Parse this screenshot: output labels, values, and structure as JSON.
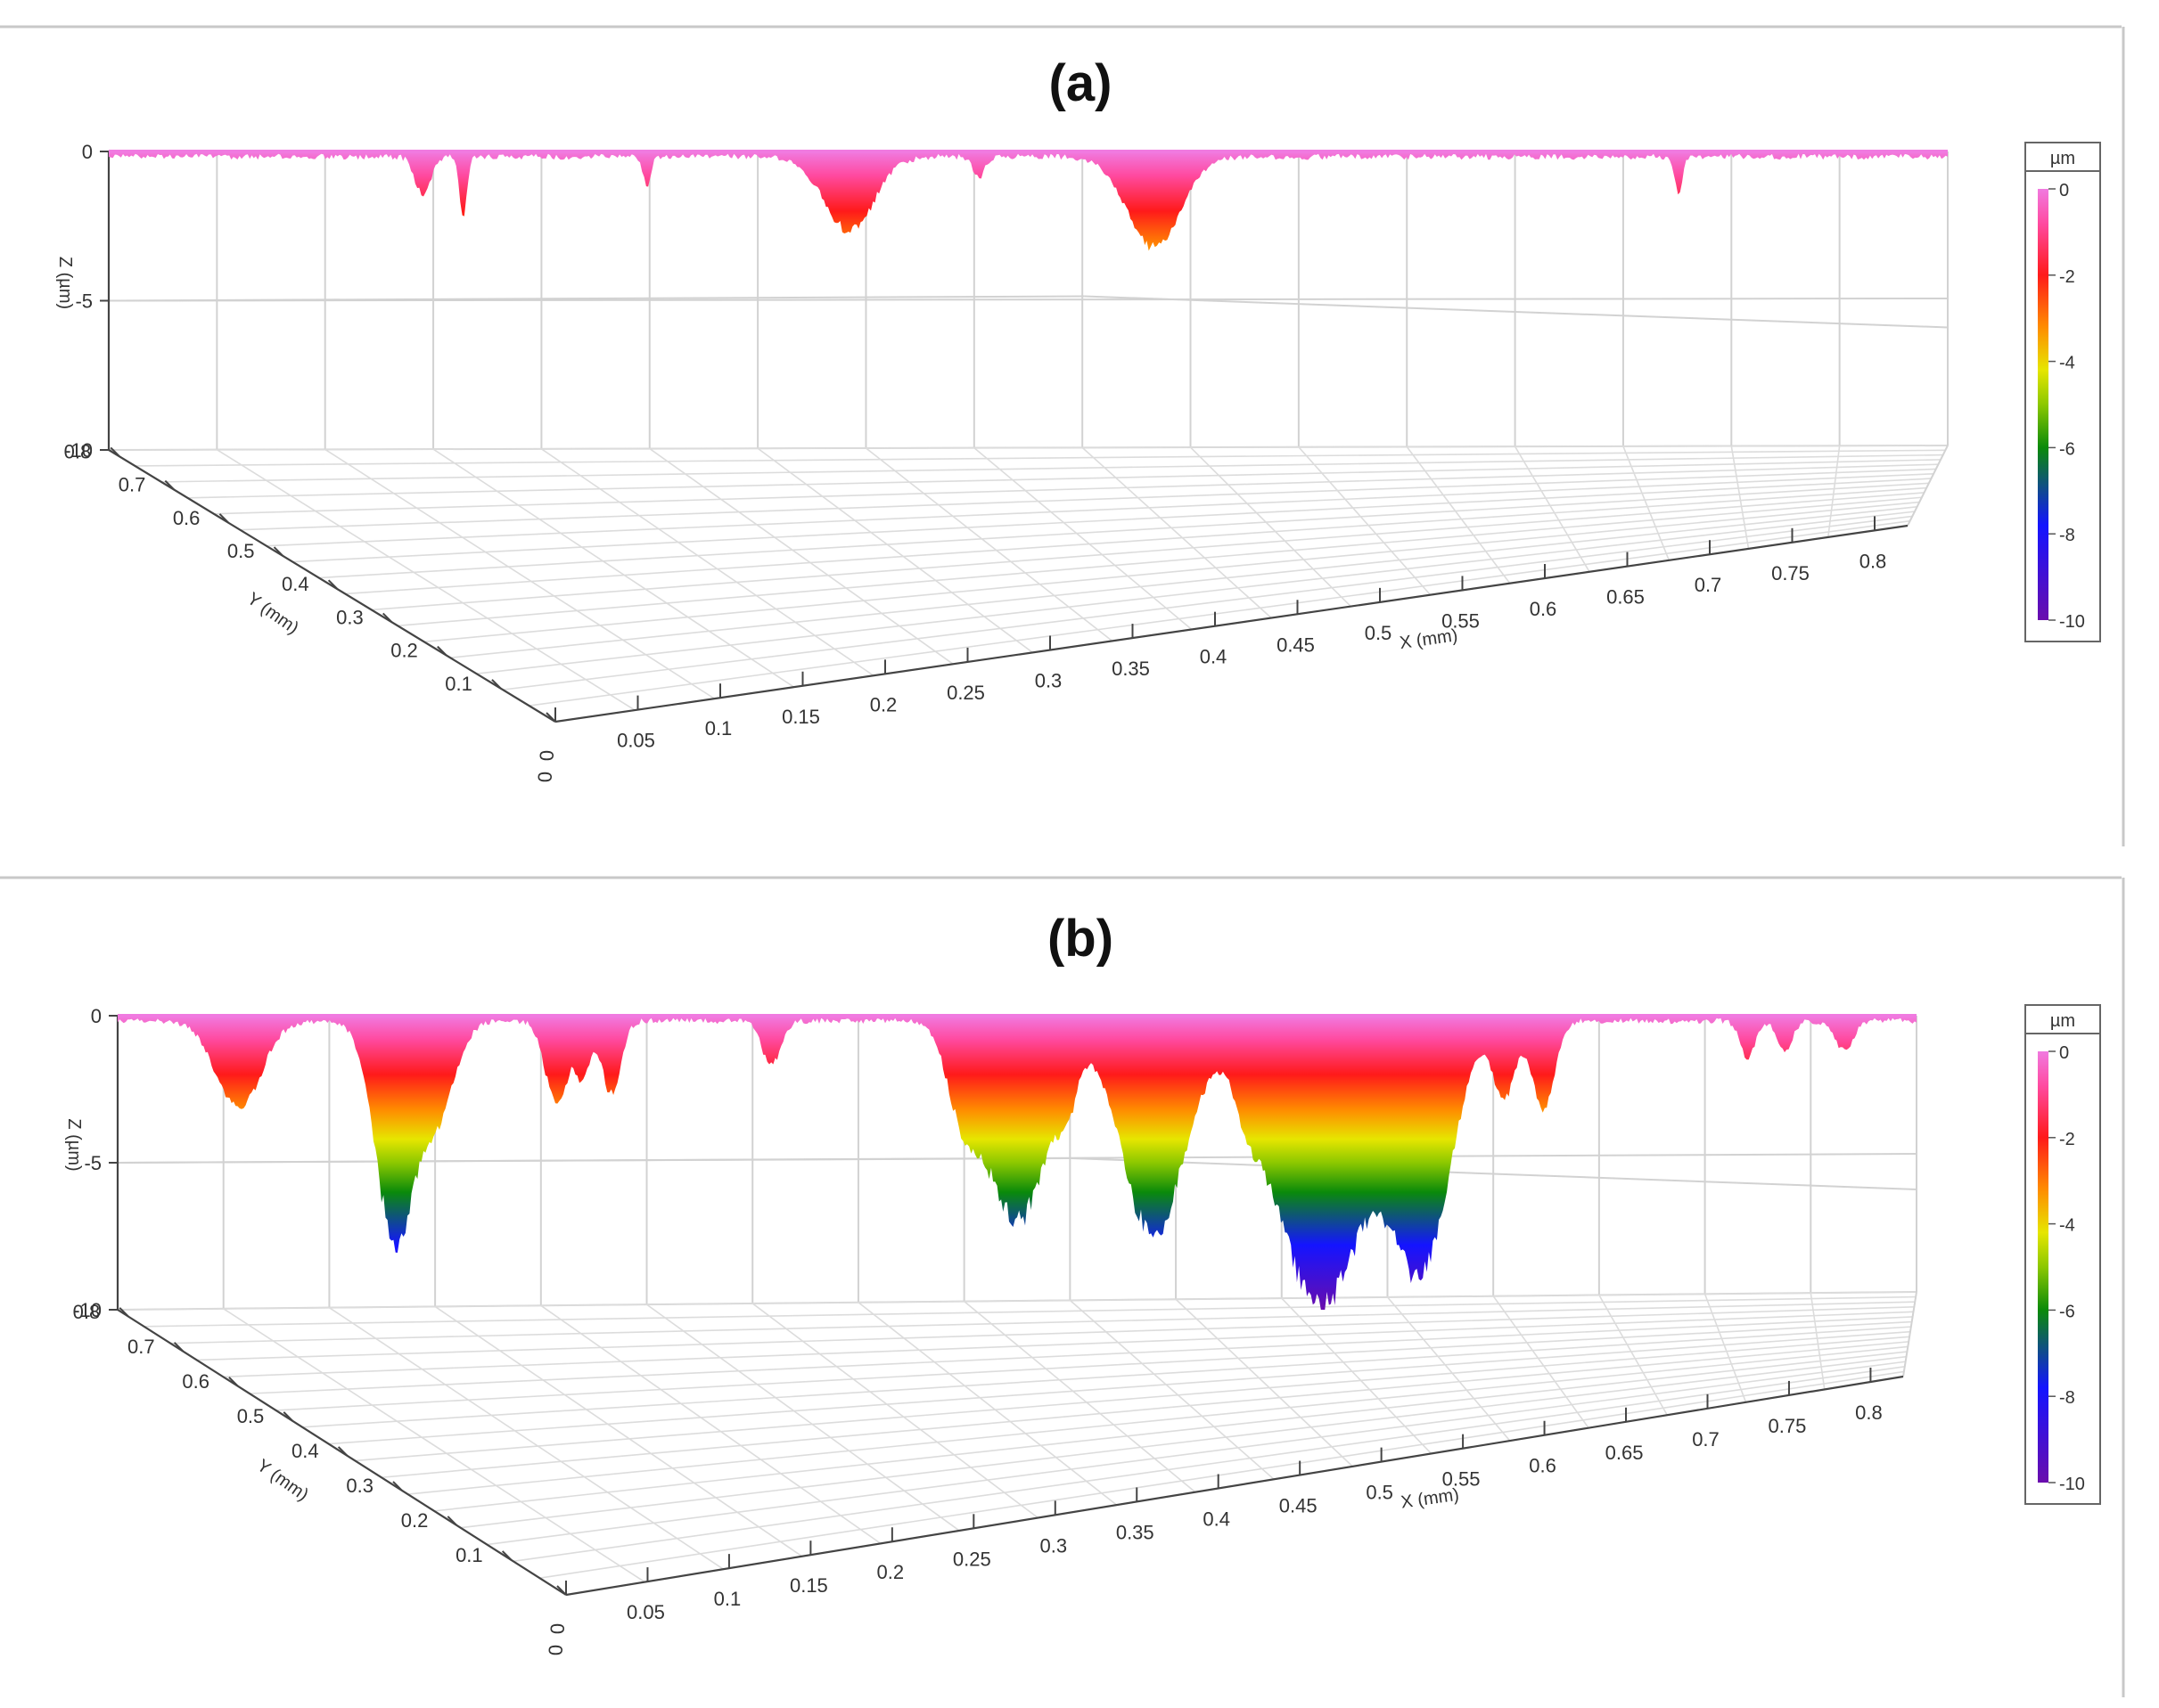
{
  "colors": {
    "colormap": [
      "#6a0dad",
      "#1414ff",
      "#0a8a0a",
      "#e6e600",
      "#ff8c00",
      "#ff1a1a",
      "#ff3c8c",
      "#f07ae0"
    ],
    "grid": "#d2d2d2",
    "axis": "#444444",
    "frame": "#c8c8c8"
  },
  "chart_data": [
    {
      "type": "surface3d",
      "title": "(a)",
      "zlabel": "Z (µm)",
      "ylabel": "Y (mm)",
      "xlabel": "X (mm)",
      "zticks": [
        "0",
        "-5",
        "-10"
      ],
      "yticks": [
        "0",
        "0.1",
        "0.2",
        "0.3",
        "0.4",
        "0.5",
        "0.6",
        "0.7",
        "0.8"
      ],
      "xticks": [
        "0",
        "0.05",
        "0.1",
        "0.15",
        "0.2",
        "0.25",
        "0.3",
        "0.35",
        "0.4",
        "0.45",
        "0.5",
        "0.55",
        "0.6",
        "0.65",
        "0.7",
        "0.75",
        "0.8"
      ],
      "zlim": [
        -10,
        0
      ],
      "xlim": [
        0,
        0.82
      ],
      "ylim": [
        0,
        0.82
      ],
      "legend": {
        "unit": "µm",
        "ticks": [
          "0",
          "-2",
          "-4",
          "-6",
          "-8",
          "-10"
        ]
      },
      "pits": [
        {
          "x": 0.14,
          "depth": 1.3,
          "w": 0.004
        },
        {
          "x": 0.158,
          "depth": 2.0,
          "w": 0.002
        },
        {
          "x": 0.24,
          "depth": 1.0,
          "w": 0.002
        },
        {
          "x": 0.33,
          "depth": 2.5,
          "w": 0.013
        },
        {
          "x": 0.388,
          "depth": 0.7,
          "w": 0.003
        },
        {
          "x": 0.466,
          "depth": 3.0,
          "w": 0.014
        },
        {
          "x": 0.7,
          "depth": 1.2,
          "w": 0.002
        }
      ]
    },
    {
      "type": "surface3d",
      "title": "(b)",
      "zlabel": "Z (µm)",
      "ylabel": "Y (mm)",
      "xlabel": "X (mm)",
      "zticks": [
        "0",
        "-5",
        "-10"
      ],
      "yticks": [
        "0",
        "0.1",
        "0.2",
        "0.3",
        "0.4",
        "0.5",
        "0.6",
        "0.7",
        "0.8"
      ],
      "xticks": [
        "0",
        "0.05",
        "0.1",
        "0.15",
        "0.2",
        "0.25",
        "0.3",
        "0.35",
        "0.4",
        "0.45",
        "0.5",
        "0.55",
        "0.6",
        "0.65",
        "0.7",
        "0.75",
        "0.8"
      ],
      "zlim": [
        -10,
        0
      ],
      "xlim": [
        0,
        0.82
      ],
      "ylim": [
        0,
        0.82
      ],
      "legend": {
        "unit": "µm",
        "ticks": [
          "0",
          "-2",
          "-4",
          "-6",
          "-8",
          "-10"
        ]
      },
      "pits": [
        {
          "x": 0.055,
          "depth": 3.0,
          "w": 0.012
        },
        {
          "x": 0.126,
          "depth": 7.3,
          "w": 0.01
        },
        {
          "x": 0.145,
          "depth": 3.2,
          "w": 0.01
        },
        {
          "x": 0.2,
          "depth": 2.8,
          "w": 0.006
        },
        {
          "x": 0.212,
          "depth": 1.8,
          "w": 0.004
        },
        {
          "x": 0.225,
          "depth": 2.5,
          "w": 0.005
        },
        {
          "x": 0.298,
          "depth": 1.5,
          "w": 0.005
        },
        {
          "x": 0.385,
          "depth": 2.5,
          "w": 0.008
        },
        {
          "x": 0.41,
          "depth": 6.8,
          "w": 0.017
        },
        {
          "x": 0.433,
          "depth": 1.5,
          "w": 0.005
        },
        {
          "x": 0.472,
          "depth": 7.3,
          "w": 0.017
        },
        {
          "x": 0.515,
          "depth": 1.2,
          "w": 0.006
        },
        {
          "x": 0.548,
          "depth": 9.7,
          "w": 0.025
        },
        {
          "x": 0.595,
          "depth": 7.8,
          "w": 0.015
        },
        {
          "x": 0.632,
          "depth": 2.5,
          "w": 0.006
        },
        {
          "x": 0.65,
          "depth": 3.0,
          "w": 0.006
        },
        {
          "x": 0.743,
          "depth": 1.3,
          "w": 0.004
        },
        {
          "x": 0.76,
          "depth": 1.0,
          "w": 0.004
        },
        {
          "x": 0.787,
          "depth": 1.0,
          "w": 0.005
        }
      ]
    }
  ]
}
